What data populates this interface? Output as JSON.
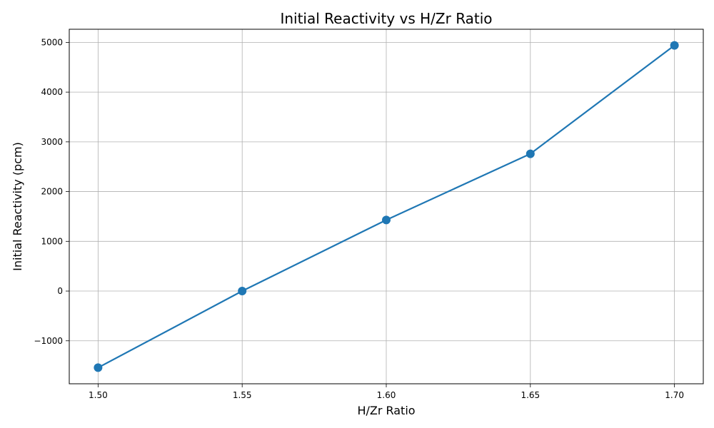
{
  "chart_data": {
    "type": "line",
    "title": "Initial Reactivity vs H/Zr Ratio",
    "xlabel": "H/Zr Ratio",
    "ylabel": "Initial Reactivity (pcm)",
    "x": [
      1.5,
      1.55,
      1.6,
      1.65,
      1.7
    ],
    "series": [
      {
        "values": [
          -1540,
          0,
          1430,
          2760,
          4940
        ]
      }
    ],
    "xlim": [
      1.49,
      1.71
    ],
    "ylim": [
      -1864,
      5264
    ],
    "xticks": [
      1.5,
      1.55,
      1.6,
      1.65,
      1.7
    ],
    "xtick_labels": [
      "1.50",
      "1.55",
      "1.60",
      "1.65",
      "1.70"
    ],
    "yticks": [
      -1000,
      0,
      1000,
      2000,
      3000,
      4000,
      5000
    ],
    "ytick_labels": [
      "−1000",
      "0",
      "1000",
      "2000",
      "3000",
      "4000",
      "5000"
    ],
    "grid": true,
    "line_color": "#1f77b4",
    "marker": "circle"
  }
}
